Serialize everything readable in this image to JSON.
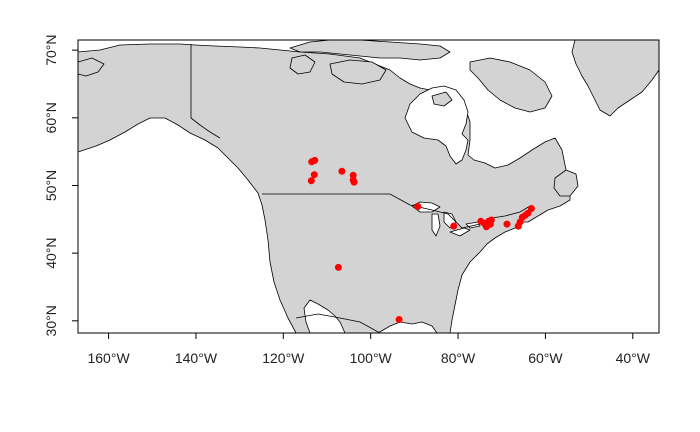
{
  "chart_data": {
    "type": "scatter",
    "title": "",
    "xlabel": "",
    "ylabel": "",
    "xlim": [
      -167,
      -34
    ],
    "ylim": [
      28.2,
      71.5
    ],
    "x_ticks": [
      -160,
      -140,
      -120,
      -100,
      -80,
      -60,
      -40
    ],
    "y_ticks": [
      30,
      40,
      50,
      60,
      70
    ],
    "x_tick_labels": [
      "160°W",
      "140°W",
      "120°W",
      "100°W",
      "80°W",
      "60°W",
      "40°W"
    ],
    "y_tick_labels": [
      "30°N",
      "40°N",
      "50°N",
      "60°N",
      "70°N"
    ],
    "land_color": "#d3d3d3",
    "point_color": "#ff0000",
    "grid": false,
    "legend": "none",
    "series": [
      {
        "points": [
          {
            "lon": -113.5,
            "lat": 53.5
          },
          {
            "lon": -112.8,
            "lat": 53.7
          },
          {
            "lon": -112.9,
            "lat": 51.6
          },
          {
            "lon": -113.6,
            "lat": 50.7
          },
          {
            "lon": -106.6,
            "lat": 52.1
          },
          {
            "lon": -104.0,
            "lat": 51.5
          },
          {
            "lon": -104.0,
            "lat": 50.8
          },
          {
            "lon": -103.8,
            "lat": 50.5
          },
          {
            "lon": -89.2,
            "lat": 46.9
          },
          {
            "lon": -81.0,
            "lat": 44.0
          },
          {
            "lon": -74.8,
            "lat": 44.7
          },
          {
            "lon": -74.0,
            "lat": 44.4
          },
          {
            "lon": -73.5,
            "lat": 43.9
          },
          {
            "lon": -73.0,
            "lat": 44.7
          },
          {
            "lon": -72.6,
            "lat": 44.3
          },
          {
            "lon": -72.4,
            "lat": 44.9
          },
          {
            "lon": -68.8,
            "lat": 44.3
          },
          {
            "lon": -66.2,
            "lat": 44.0
          },
          {
            "lon": -65.8,
            "lat": 44.6
          },
          {
            "lon": -65.3,
            "lat": 45.3
          },
          {
            "lon": -64.6,
            "lat": 45.6
          },
          {
            "lon": -64.0,
            "lat": 45.9
          },
          {
            "lon": -63.2,
            "lat": 46.6
          },
          {
            "lon": -107.4,
            "lat": 37.9
          },
          {
            "lon": -93.5,
            "lat": 30.2
          }
        ]
      }
    ]
  }
}
